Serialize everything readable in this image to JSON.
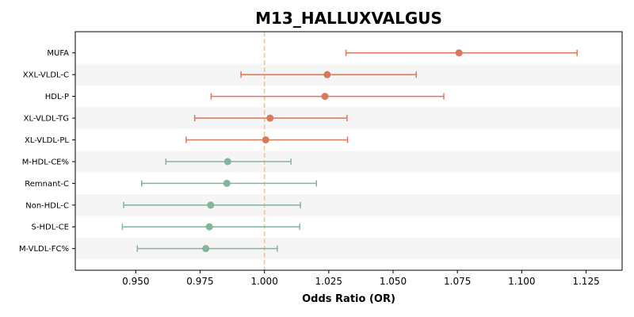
{
  "chart_data": {
    "type": "forest",
    "title": "M13_HALLUXVALGUS",
    "xlabel": "Odds Ratio (OR)",
    "ylabel": "",
    "xlim": [
      0.9265,
      1.139
    ],
    "xticks": [
      0.95,
      0.975,
      1.0,
      1.025,
      1.05,
      1.075,
      1.1,
      1.125
    ],
    "xtick_labels": [
      "0.950",
      "0.975",
      "1.000",
      "1.025",
      "1.050",
      "1.075",
      "1.100",
      "1.125"
    ],
    "reference_line": 1.0,
    "grid": false,
    "band_color": "#f5f5f5",
    "colors": {
      "positive": "#d9785c",
      "negative": "#82b59a",
      "reference": "#f0c875"
    },
    "rows": [
      {
        "label": "MUFA",
        "or": 1.0756,
        "lower": 1.0317,
        "upper": 1.1215,
        "direction": "positive"
      },
      {
        "label": "XXL-VLDL-C",
        "or": 1.0244,
        "lower": 0.9909,
        "upper": 1.059,
        "direction": "positive"
      },
      {
        "label": "HDL-P",
        "or": 1.0235,
        "lower": 0.9793,
        "upper": 1.0697,
        "direction": "positive"
      },
      {
        "label": "XL-VLDL-TG",
        "or": 1.0022,
        "lower": 0.9729,
        "upper": 1.0321,
        "direction": "positive"
      },
      {
        "label": "XL-VLDL-PL",
        "or": 1.0005,
        "lower": 0.9696,
        "upper": 1.0323,
        "direction": "positive"
      },
      {
        "label": "M-HDL-CE%",
        "or": 0.9857,
        "lower": 0.9617,
        "upper": 1.0103,
        "direction": "negative"
      },
      {
        "label": "Remnant-C",
        "or": 0.9854,
        "lower": 0.9523,
        "upper": 1.0202,
        "direction": "negative"
      },
      {
        "label": "Non-HDL-C",
        "or": 0.9791,
        "lower": 0.9453,
        "upper": 1.014,
        "direction": "negative"
      },
      {
        "label": "S-HDL-CE",
        "or": 0.9786,
        "lower": 0.9448,
        "upper": 1.0137,
        "direction": "negative"
      },
      {
        "label": "M-VLDL-FC%",
        "or": 0.9772,
        "lower": 0.9506,
        "upper": 1.005,
        "direction": "negative"
      }
    ]
  }
}
